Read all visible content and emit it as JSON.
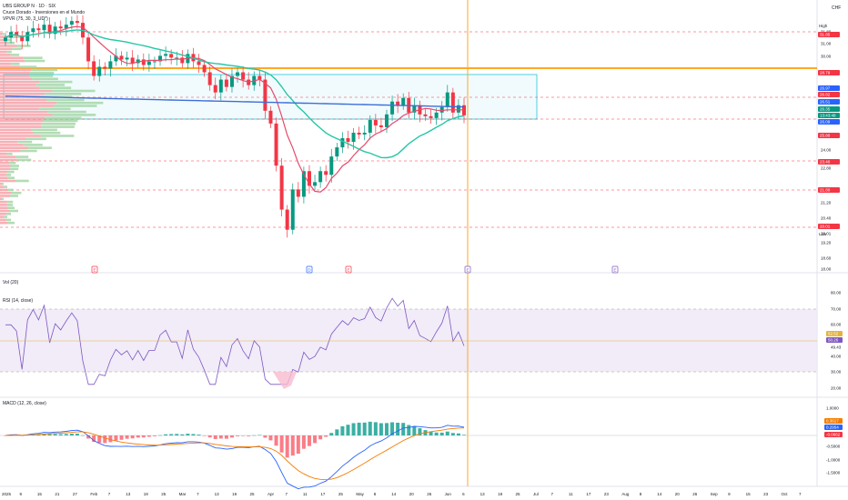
{
  "header": {
    "symbol": "UBS GROUP N · 1D · SIX",
    "subtitle": "Cruce Dorado - Inversiones en el Mundo",
    "vpvr": "VPVR (75, 30, 3_UD*)",
    "currency": "CHF"
  },
  "price_axis": {
    "ticks": [
      "31.80",
      "31.00",
      "30.00",
      "28.79",
      "26.73",
      "26.57",
      "26.51",
      "26.41",
      "25.50",
      "24.00",
      "22.80",
      "21.20",
      "20.40",
      "20.01",
      "19.20",
      "18.60",
      "18.00"
    ],
    "high_label": "High",
    "low_label": "Low",
    "price_badges": [
      {
        "text": "31.85",
        "color": "#f23645"
      },
      {
        "text": "28.79",
        "color": "#f23645"
      },
      {
        "text": "26.97",
        "color": "#2962ff"
      },
      {
        "text": "26.82",
        "color": "#f23645"
      },
      {
        "text": "26.51",
        "color": "#2962ff"
      },
      {
        "text": "26.35",
        "color": "#089981"
      },
      {
        "text": "13:43:48",
        "color": "#089981"
      },
      {
        "text": "26.09",
        "color": "#2962ff"
      },
      {
        "text": "25.80",
        "color": "#f23645"
      },
      {
        "text": "23.40",
        "color": "#f23645"
      },
      {
        "text": "21.80",
        "color": "#f23645"
      },
      {
        "text": "20.01",
        "color": "#f23645"
      }
    ]
  },
  "volume_pane": {
    "label": "Vol (20)"
  },
  "rsi_pane": {
    "label": "RSI (14, close)",
    "ticks": [
      "80.00",
      "70.00",
      "60.00",
      "49.43",
      "40.00",
      "30.00",
      "20.00"
    ],
    "value_badges": [
      {
        "text": "52.52",
        "color": "#e3b341"
      },
      {
        "text": "50.26",
        "color": "#7e57c2"
      }
    ]
  },
  "macd_pane": {
    "label": "MACD (12, 26, close)",
    "ticks": [
      "1.0000",
      "0.5000",
      "0.0000",
      "-0.5000",
      "-1.0000",
      "-1.5000"
    ],
    "value_badges": [
      {
        "text": "0.3617",
        "color": "#f57c00"
      },
      {
        "text": "0.2954",
        "color": "#2962ff"
      },
      {
        "text": "-0.0662",
        "color": "#f23645"
      }
    ]
  },
  "time_axis": [
    "2025",
    "9",
    "15",
    "21",
    "27",
    "Feb",
    "7",
    "13",
    "19",
    "25",
    "Mar",
    "7",
    "13",
    "19",
    "25",
    "Apr",
    "7",
    "11",
    "17",
    "25",
    "May",
    "8",
    "14",
    "20",
    "26",
    "Jun",
    "6",
    "13",
    "19",
    "25",
    "Jul",
    "7",
    "11",
    "17",
    "23",
    "Aug",
    "8",
    "14",
    "20",
    "26",
    "Sep",
    "9",
    "15",
    "23",
    "Oct",
    "7"
  ],
  "event_markers": [
    "E",
    "D",
    "E",
    "E",
    "E"
  ],
  "chart_data": {
    "type": "candlestick",
    "title": "UBS GROUP N · 1D · SIX",
    "ylabel": "CHF",
    "ylim": [
      18.0,
      32.4
    ],
    "price_closes": [
      30.6,
      30.9,
      30.7,
      30.4,
      30.9,
      31.1,
      31.0,
      31.3,
      30.8,
      31.2,
      31.1,
      31.3,
      31.5,
      31.4,
      30.6,
      29.3,
      28.5,
      29.0,
      28.9,
      29.3,
      29.6,
      29.4,
      29.5,
      29.2,
      29.4,
      29.1,
      29.3,
      29.3,
      29.6,
      29.7,
      29.5,
      29.5,
      29.2,
      29.7,
      29.3,
      29.1,
      28.7,
      28.0,
      27.6,
      28.3,
      27.9,
      28.5,
      28.7,
      28.3,
      28.0,
      28.5,
      28.3,
      26.6,
      25.9,
      23.6,
      21.2,
      20.1,
      22.3,
      21.9,
      23.3,
      22.5,
      22.7,
      23.3,
      23.1,
      24.1,
      24.6,
      25.1,
      24.9,
      25.4,
      25.3,
      25.4,
      26.1,
      25.8,
      25.7,
      26.4,
      27.1,
      26.9,
      27.3,
      26.5,
      26.9,
      26.4,
      26.3,
      26.2,
      26.5,
      26.8,
      27.6,
      26.5,
      26.9,
      26.35
    ]
  },
  "colors": {
    "up": "#089981",
    "down": "#f23645",
    "sma": "#e64a6c",
    "ema": "#26c6a6",
    "vwap": "#3f6dd9",
    "rsi": "#7e57c2",
    "highlight": "#ffa726"
  }
}
